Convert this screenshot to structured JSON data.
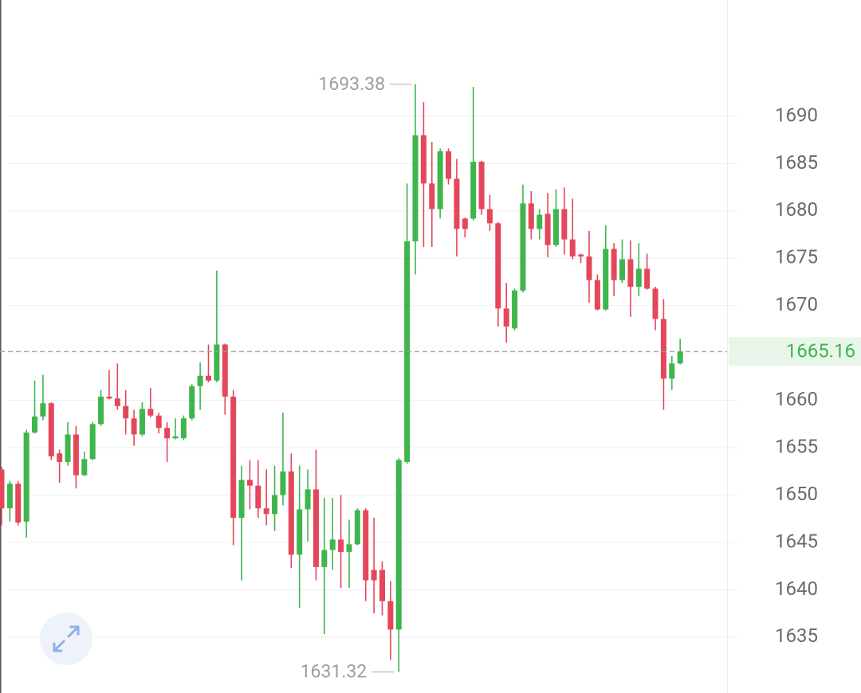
{
  "chart_data": {
    "type": "candlestick",
    "up_color": "#3fb54d",
    "down_color": "#e4475b",
    "grid": true,
    "ylim": [
      1629.1,
      1702.28
    ],
    "yticks": [
      1635,
      1640,
      1645,
      1650,
      1655,
      1660,
      1665,
      1670,
      1675,
      1680,
      1685,
      1690
    ],
    "open": [
      1652.7,
      1648.6,
      1651.2,
      1647.2,
      1656.6,
      1658.3,
      1659.7,
      1654.4,
      1653.5,
      1656.4,
      1652.1,
      1653.8,
      1657.5,
      1660.4,
      1660.2,
      1659.4,
      1658.1,
      1656.4,
      1659.1,
      1658.4,
      1657.1,
      1656.0,
      1656.0,
      1658.1,
      1661.5,
      1662.6,
      1662.1,
      1665.9,
      1660.4,
      1647.6,
      1651.6,
      1651.0,
      1648.6,
      1648.0,
      1650.0,
      1652.5,
      1643.7,
      1648.5,
      1650.6,
      1642.4,
      1644.2,
      1645.3,
      1644.0,
      1644.8,
      1648.4,
      1642.1,
      1642.1,
      1638.8,
      1635.8,
      1653.5,
      1676.8,
      1688.0,
      1682.9,
      1680.2,
      1686.3,
      1683.4,
      1679.2,
      1679.2,
      1685.2,
      1680.2,
      1678.7,
      1669.7,
      1667.6,
      1671.6,
      1680.8,
      1678.1,
      1679.7,
      1676.4,
      1680.2,
      1677.0,
      1675.4,
      1675.2,
      1672.7,
      1669.6,
      1676.0,
      1672.7,
      1674.9,
      1672.0,
      1673.9,
      1671.8,
      1668.6,
      1662.3,
      1663.9
    ],
    "high": [
      1653.0,
      1651.5,
      1651.5,
      1656.9,
      1662.1,
      1662.7,
      1659.8,
      1654.8,
      1657.7,
      1657.3,
      1654.6,
      1657.7,
      1661.1,
      1663.2,
      1663.9,
      1661.1,
      1659.0,
      1659.8,
      1661.3,
      1658.7,
      1657.7,
      1658.1,
      1658.4,
      1661.7,
      1664.0,
      1665.9,
      1673.7,
      1666.0,
      1661.1,
      1653.1,
      1653.7,
      1653.7,
      1652.7,
      1653.1,
      1658.7,
      1654.4,
      1653.1,
      1652.7,
      1654.8,
      1649.7,
      1649.7,
      1650.0,
      1647.4,
      1648.6,
      1648.6,
      1647.6,
      1643.0,
      1640.9,
      1653.9,
      1682.9,
      1693.38,
      1691.5,
      1687.3,
      1686.6,
      1686.6,
      1685.5,
      1679.3,
      1693.1,
      1685.3,
      1681.7,
      1678.8,
      1672.4,
      1671.8,
      1682.8,
      1682.1,
      1680.2,
      1681.9,
      1682.3,
      1682.5,
      1681.3,
      1675.5,
      1677.9,
      1673.3,
      1678.5,
      1676.6,
      1677.0,
      1676.9,
      1676.6,
      1675.5,
      1672.0,
      1670.7,
      1664.7,
      1666.5
    ],
    "low": [
      1646.8,
      1647.2,
      1646.8,
      1645.5,
      1656.5,
      1657.9,
      1653.7,
      1651.3,
      1653.1,
      1650.7,
      1652.0,
      1653.7,
      1657.3,
      1660.1,
      1659.0,
      1656.4,
      1655.2,
      1656.2,
      1658.2,
      1656.5,
      1653.5,
      1655.9,
      1655.8,
      1657.9,
      1659.0,
      1661.9,
      1661.9,
      1658.5,
      1644.7,
      1641.0,
      1648.5,
      1647.6,
      1646.8,
      1646.2,
      1648.9,
      1642.3,
      1638.1,
      1645.1,
      1641.0,
      1635.3,
      1642.1,
      1640.2,
      1640.2,
      1644.7,
      1638.8,
      1637.5,
      1637.3,
      1632.6,
      1631.32,
      1653.3,
      1673.3,
      1676.2,
      1676.2,
      1679.2,
      1682.8,
      1675.2,
      1677.2,
      1679.0,
      1679.6,
      1677.9,
      1667.8,
      1666.1,
      1667.4,
      1671.4,
      1677.0,
      1677.0,
      1675.1,
      1676.2,
      1675.4,
      1674.9,
      1674.5,
      1670.3,
      1669.5,
      1669.5,
      1671.0,
      1672.4,
      1668.8,
      1671.0,
      1671.7,
      1667.4,
      1659.0,
      1661.1,
      1663.8
    ],
    "close": [
      1648.6,
      1651.2,
      1647.1,
      1656.6,
      1658.3,
      1659.7,
      1654.1,
      1653.5,
      1656.4,
      1652.1,
      1653.8,
      1657.5,
      1660.4,
      1660.2,
      1659.4,
      1658.1,
      1656.4,
      1659.1,
      1658.4,
      1657.1,
      1656.0,
      1656.2,
      1658.1,
      1661.5,
      1662.6,
      1662.1,
      1665.9,
      1660.4,
      1647.6,
      1651.6,
      1651.0,
      1648.6,
      1648.0,
      1650.0,
      1652.5,
      1643.7,
      1648.5,
      1650.6,
      1642.4,
      1644.2,
      1645.3,
      1644.0,
      1644.8,
      1648.4,
      1641.0,
      1641.0,
      1638.8,
      1635.8,
      1653.7,
      1676.8,
      1688.0,
      1682.9,
      1680.2,
      1686.3,
      1683.4,
      1678.1,
      1678.1,
      1685.2,
      1680.2,
      1678.7,
      1669.7,
      1667.8,
      1671.6,
      1680.8,
      1678.1,
      1679.6,
      1676.4,
      1680.2,
      1677.0,
      1675.2,
      1675.2,
      1672.7,
      1669.6,
      1676.0,
      1672.7,
      1674.9,
      1672.0,
      1673.9,
      1671.8,
      1668.6,
      1662.3,
      1663.9,
      1665.16
    ]
  }
}
